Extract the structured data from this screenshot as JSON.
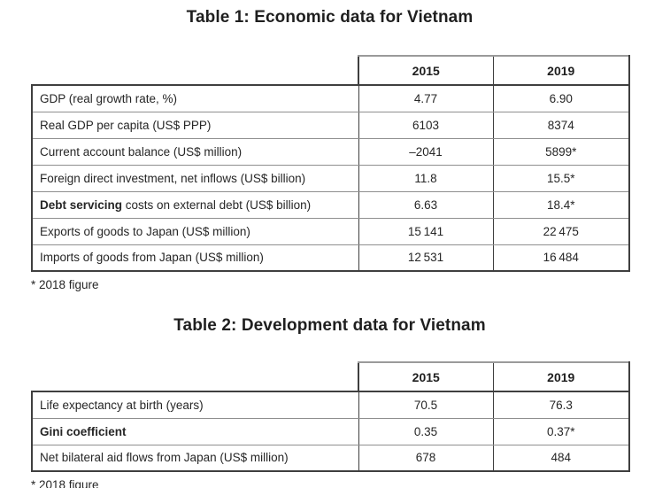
{
  "page": {
    "background": "#ffffff",
    "text_color": "#262626",
    "border_dark": "#3f3f3f",
    "border_light": "#8f8f8f"
  },
  "table1": {
    "title": "Table 1: Economic data for Vietnam",
    "columns": [
      "2015",
      "2019"
    ],
    "rows": [
      {
        "label_bold": "",
        "label": "GDP (real growth rate, %)",
        "v2015": "4.77",
        "v2019": "6.90"
      },
      {
        "label_bold": "",
        "label": "Real GDP per capita (US$ PPP)",
        "v2015": "6103",
        "v2019": "8374"
      },
      {
        "label_bold": "",
        "label": "Current account balance (US$ million)",
        "v2015": "–2041",
        "v2019": "5899*"
      },
      {
        "label_bold": "",
        "label": "Foreign direct investment, net inflows (US$ billion)",
        "v2015": "11.8",
        "v2019": "15.5*"
      },
      {
        "label_bold": "Debt servicing",
        "label": " costs on external debt (US$ billion)",
        "v2015": "6.63",
        "v2019": "18.4*"
      },
      {
        "label_bold": "",
        "label": "Exports of goods to Japan (US$ million)",
        "v2015": "15 141",
        "v2019": "22 475"
      },
      {
        "label_bold": "",
        "label": "Imports of goods from Japan (US$ million)",
        "v2015": "12 531",
        "v2019": "16 484"
      }
    ],
    "footnote": "* 2018 figure"
  },
  "table2": {
    "title": "Table 2: Development data for Vietnam",
    "columns": [
      "2015",
      "2019"
    ],
    "rows": [
      {
        "label_bold": "",
        "label": "Life expectancy at birth (years)",
        "v2015": "70.5",
        "v2019": "76.3"
      },
      {
        "label_bold": "Gini coefficient",
        "label": "",
        "v2015": "0.35",
        "v2019": "0.37*"
      },
      {
        "label_bold": "",
        "label": "Net bilateral aid flows from Japan (US$ million)",
        "v2015": "678",
        "v2019": "484"
      }
    ],
    "footnote": "* 2018 figure"
  }
}
